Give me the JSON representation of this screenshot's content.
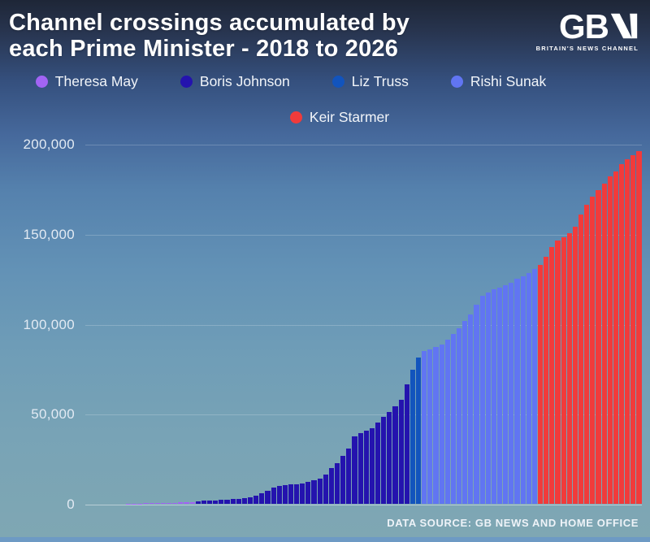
{
  "header": {
    "title_line1": "Channel crossings accumulated by",
    "title_line2": "each Prime Minister - 2018 to 2026"
  },
  "logo": {
    "wordmark": "GB",
    "tagline": "BRITAIN'S NEWS CHANNEL"
  },
  "footer": {
    "source": "DATA SOURCE: GB NEWS AND HOME OFFICE"
  },
  "chart_data": {
    "type": "bar",
    "title": "Channel crossings accumulated by each Prime Minister - 2018 to 2026",
    "xlabel": "",
    "ylabel": "",
    "x_unit": "month",
    "x_range": "Jan 2018 to Dec 2025",
    "ylim": [
      0,
      200000
    ],
    "grid": true,
    "legend_position": "top-center",
    "yticks": [
      {
        "label": "200,000",
        "value": 200000
      },
      {
        "label": "150,000",
        "value": 150000
      },
      {
        "label": "100,000",
        "value": 100000
      },
      {
        "label": "50,000",
        "value": 50000
      },
      {
        "label": "0",
        "value": 0
      }
    ],
    "legend_rows": [
      [
        0,
        1,
        2,
        3
      ],
      [
        4
      ]
    ],
    "series": [
      {
        "name": "Theresa May",
        "color": "#a264f4",
        "values": [
          0,
          0,
          0,
          0,
          0,
          0,
          0,
          100,
          150,
          200,
          250,
          300,
          390,
          480,
          570,
          660,
          760,
          860,
          1100
        ]
      },
      {
        "name": "Boris Johnson",
        "color": "#2413ae",
        "values": [
          1400,
          1600,
          1900,
          2000,
          2150,
          2300,
          2500,
          2700,
          3100,
          3800,
          4600,
          5700,
          7200,
          9100,
          10000,
          10400,
          10700,
          11000,
          11200,
          12000,
          12900,
          14200,
          16300,
          19700,
          22800,
          26600,
          30600,
          37300,
          39400,
          40700,
          42100,
          45200,
          48100,
          51000,
          54100,
          57800,
          66400
        ]
      },
      {
        "name": "Liz Truss",
        "color": "#1254bd",
        "values": [
          74300,
          81300
        ]
      },
      {
        "name": "Rishi Sunak",
        "color": "#6175f2",
        "values": [
          84800,
          85900,
          87100,
          88400,
          91300,
          94200,
          97600,
          101400,
          105400,
          110800,
          115400,
          117200,
          119100,
          120200,
          121400,
          122700,
          124900,
          126300,
          128100,
          130400
        ]
      },
      {
        "name": "Keir Starmer",
        "color": "#f13b3b",
        "values": [
          132900,
          137200,
          142600,
          146300,
          148000,
          150300,
          154000,
          160700,
          166100,
          170600,
          174300,
          177900,
          181900,
          184600,
          188700,
          191400,
          193700,
          195900
        ]
      }
    ]
  }
}
